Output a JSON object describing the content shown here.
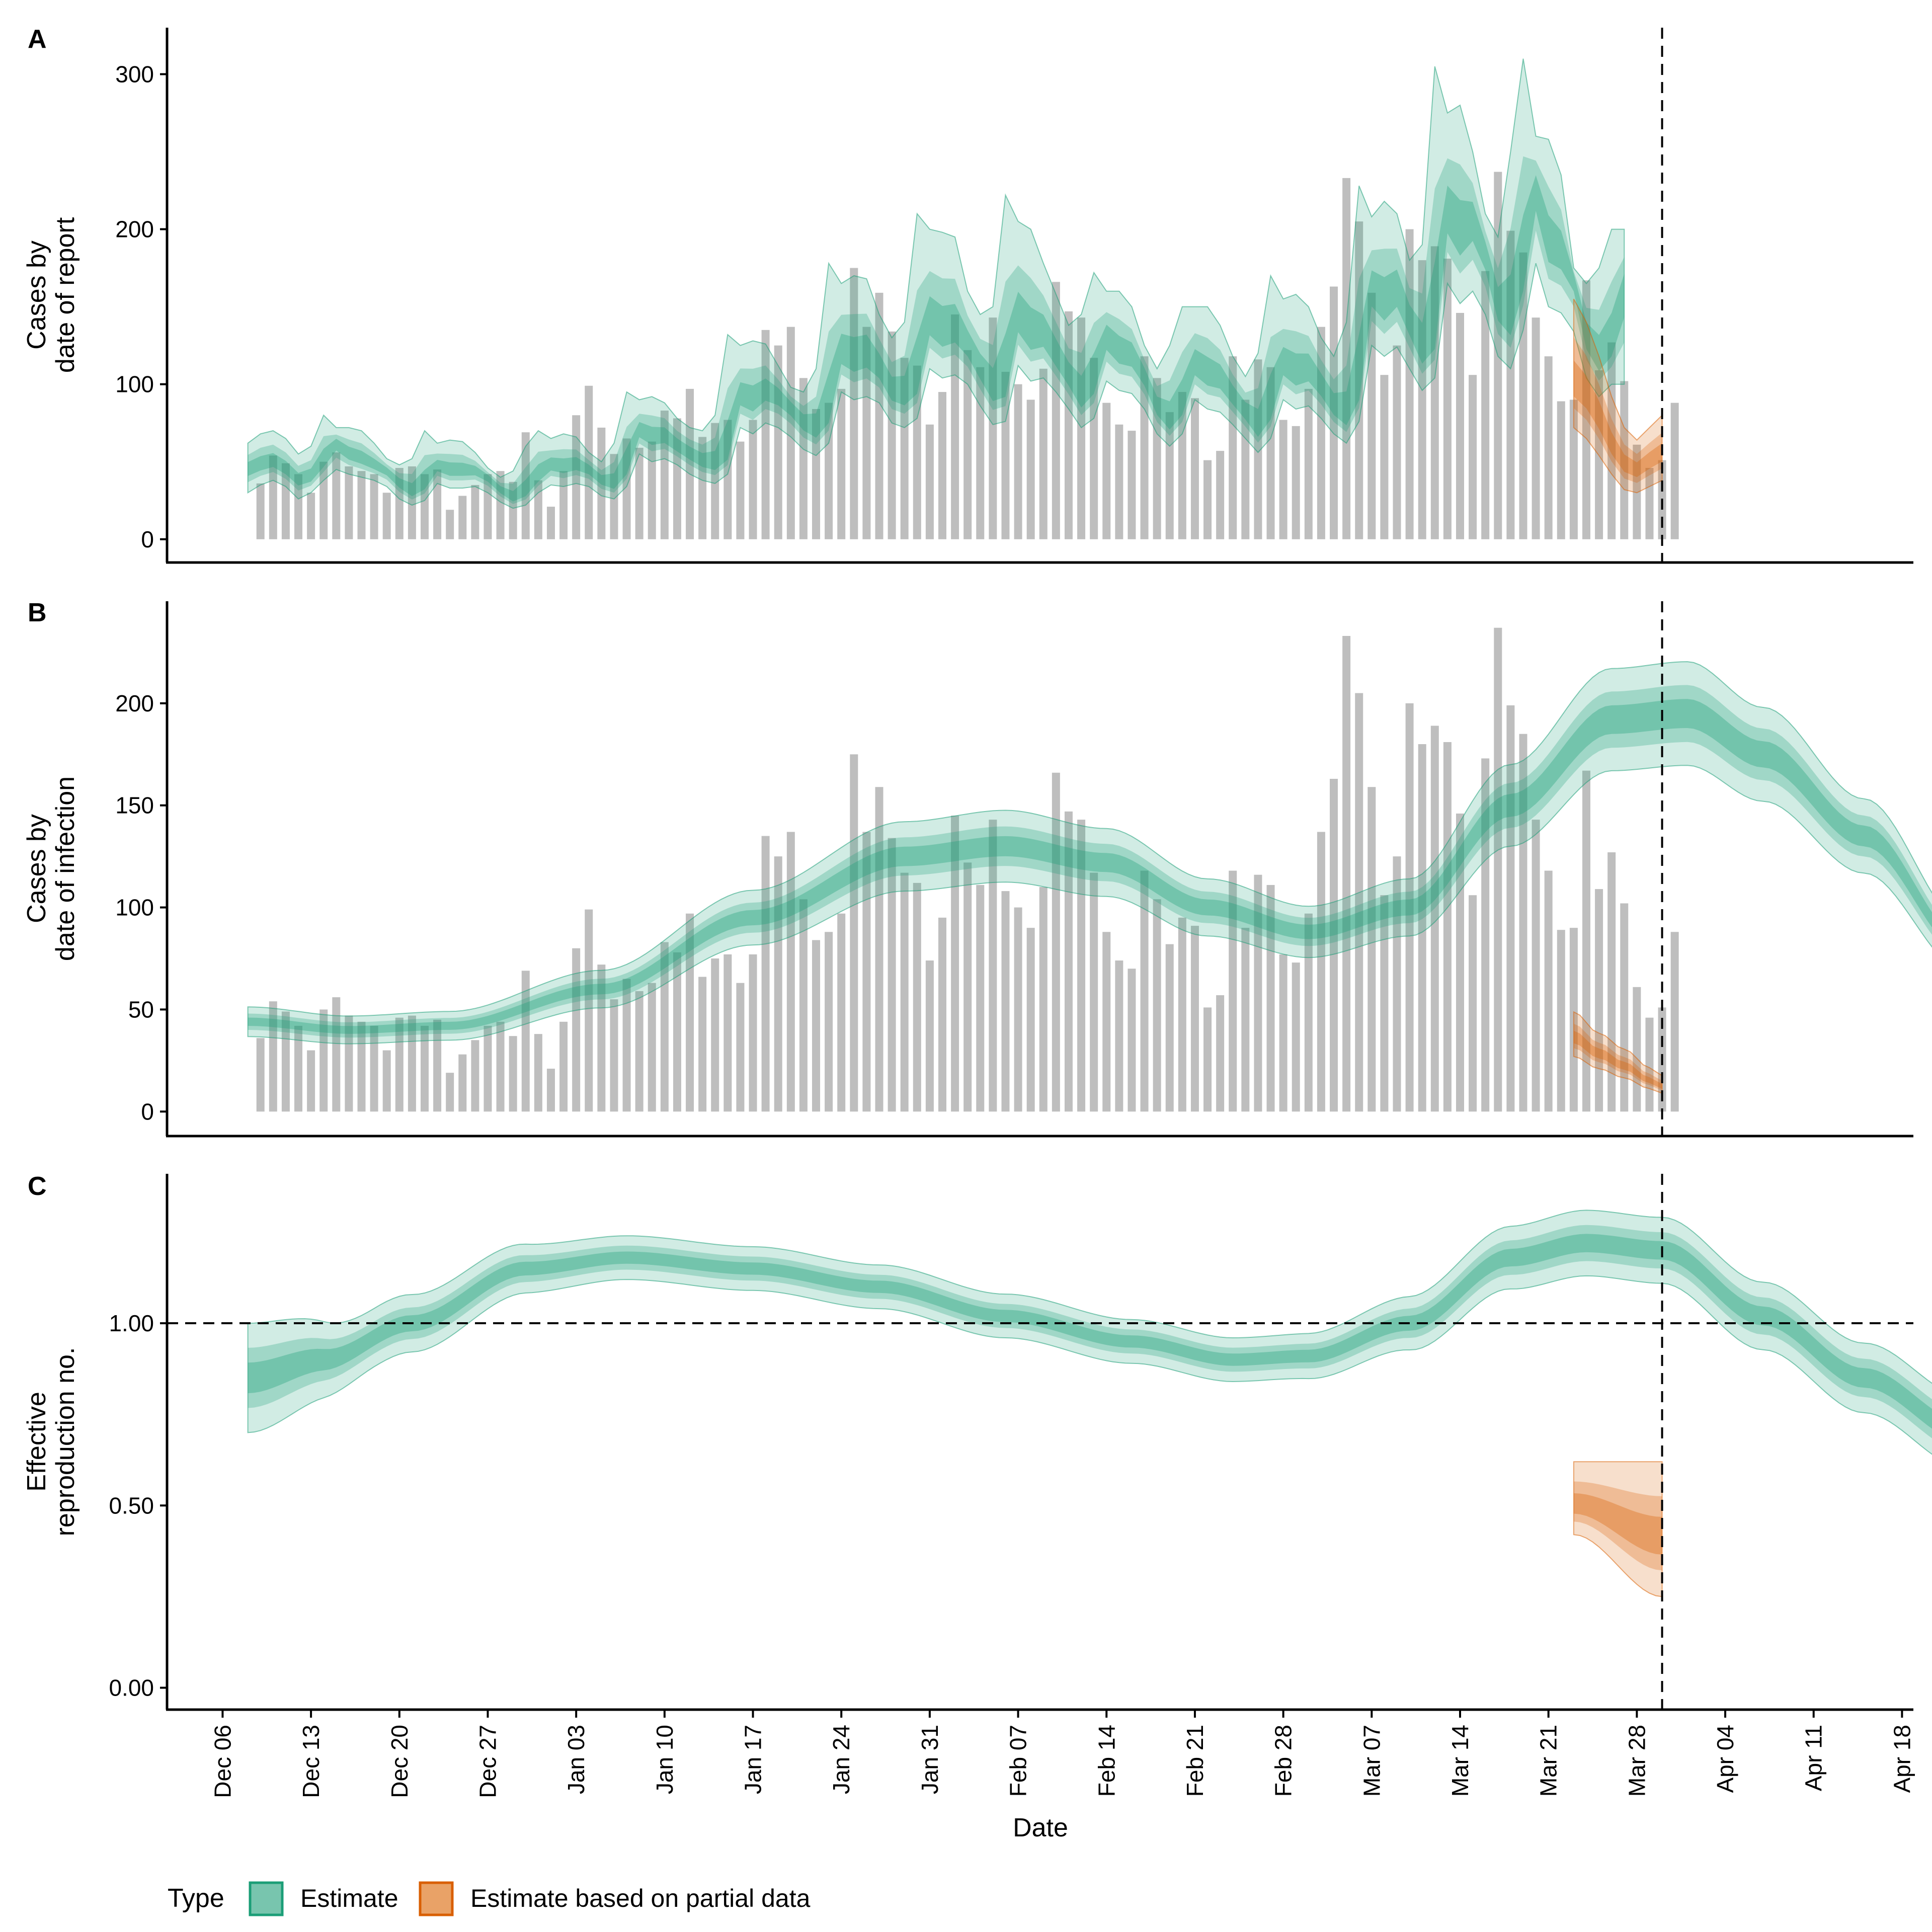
{
  "chart_data": [
    {
      "panel": "A",
      "type": "bar",
      "ylabel": [
        "Cases by",
        "date of report"
      ],
      "ylim": [
        -15,
        330
      ],
      "yticks": [
        0,
        100,
        200,
        300
      ],
      "ytick_labels": [
        "0",
        "100",
        "200",
        "300"
      ],
      "series_bars": "reported_cases",
      "estimate_bands": {
        "start": "2020-12-08",
        "median": [
          45,
          48,
          50,
          45,
          38,
          40,
          50,
          62,
          55,
          52,
          48,
          44,
          36,
          30,
          35,
          47,
          44,
          44,
          44,
          40,
          32,
          26,
          30,
          40,
          48,
          46,
          48,
          45,
          38,
          35,
          45,
          70,
          65,
          66,
          60,
          55,
          50,
          48,
          55,
          92,
          88,
          95,
          92,
          85,
          75,
          70,
          80,
          120,
          115,
          118,
          110,
          95,
          92,
          100,
          140,
          132,
          135,
          125,
          110,
          95,
          98,
          142,
          130,
          132,
          118,
          105,
          90,
          100,
          130,
          120,
          118,
          105,
          85,
          75,
          85,
          112,
          105,
          103,
          92,
          82,
          70,
          82,
          112,
          105,
          108,
          98,
          85,
          78,
          95,
          160,
          150,
          160,
          140,
          120,
          130,
          210,
          195,
          205,
          185,
          150,
          140,
          170,
          225,
          190,
          185,
          170,
          130,
          115,
          125,
          160
        ],
        "upper90": [
          62,
          68,
          70,
          65,
          55,
          60,
          80,
          72,
          72,
          70,
          62,
          52,
          48,
          52,
          70,
          62,
          64,
          63,
          56,
          46,
          40,
          44,
          60,
          70,
          65,
          68,
          66,
          56,
          50,
          62,
          95,
          90,
          92,
          88,
          78,
          72,
          70,
          80,
          132,
          125,
          128,
          126,
          112,
          98,
          95,
          110,
          178,
          165,
          170,
          168,
          145,
          130,
          140,
          210,
          200,
          198,
          195,
          160,
          145,
          150,
          222,
          205,
          200,
          178,
          158,
          138,
          145,
          172,
          160,
          160,
          150,
          125,
          110,
          125,
          150,
          150,
          150,
          138,
          118,
          105,
          120,
          170,
          155,
          158,
          150,
          130,
          118,
          140,
          228,
          208,
          218,
          210,
          180,
          190,
          305,
          275,
          280,
          250,
          210,
          195,
          250,
          310,
          260,
          258,
          235,
          175,
          165,
          175,
          200
        ],
        "lower90": [
          30,
          35,
          38,
          34,
          26,
          30,
          38,
          45,
          42,
          40,
          38,
          34,
          26,
          22,
          25,
          36,
          33,
          33,
          34,
          30,
          24,
          20,
          22,
          30,
          35,
          34,
          36,
          34,
          28,
          26,
          34,
          55,
          50,
          52,
          48,
          42,
          38,
          36,
          42,
          72,
          68,
          75,
          72,
          66,
          58,
          54,
          62,
          95,
          90,
          92,
          88,
          75,
          72,
          78,
          110,
          104,
          106,
          100,
          86,
          74,
          76,
          112,
          102,
          104,
          95,
          84,
          72,
          78,
          102,
          96,
          94,
          84,
          68,
          60,
          68,
          90,
          84,
          82,
          74,
          65,
          56,
          65,
          90,
          84,
          86,
          78,
          68,
          62,
          76,
          125,
          118,
          124,
          110,
          96,
          104,
          165,
          152,
          160,
          145,
          118,
          110,
          135,
          178,
          150,
          146,
          134,
          104,
          92,
          100
        ],
        "partial_start": "2021-03-23",
        "partial_median": [
          100,
          92,
          78,
          60,
          48,
          44,
          50,
          55
        ],
        "partial_upper90": [
          155,
          140,
          118,
          92,
          72,
          64,
          72,
          80
        ],
        "partial_lower90": [
          72,
          65,
          54,
          42,
          32,
          30,
          34,
          38
        ]
      }
    },
    {
      "panel": "B",
      "type": "bar",
      "ylabel": [
        "Cases by",
        "date of infection"
      ],
      "ylim": [
        -12,
        250
      ],
      "yticks": [
        0,
        50,
        100,
        150,
        200
      ],
      "ytick_labels": [
        "0",
        "50",
        "100",
        "150",
        "200"
      ],
      "series_bars": "reported_cases",
      "estimate_curve": {
        "start": "2020-12-08",
        "knots": [
          [
            0,
            44
          ],
          [
            8,
            40
          ],
          [
            16,
            42
          ],
          [
            28,
            60
          ],
          [
            40,
            95
          ],
          [
            52,
            125
          ],
          [
            60,
            130
          ],
          [
            68,
            122
          ],
          [
            76,
            100
          ],
          [
            84,
            88
          ],
          [
            92,
            100
          ],
          [
            100,
            150
          ],
          [
            108,
            192
          ],
          [
            114,
            195
          ],
          [
            120,
            175
          ],
          [
            128,
            135
          ],
          [
            136,
            80
          ],
          [
            143,
            52
          ],
          [
            147,
            42
          ]
        ],
        "partial_knots": [
          [
            0,
            36
          ],
          [
            2,
            28
          ],
          [
            4,
            22
          ],
          [
            6,
            15
          ],
          [
            7,
            12
          ]
        ],
        "partial_start": "2021-03-23"
      }
    },
    {
      "panel": "C",
      "type": "line",
      "ylabel": [
        "Effective",
        "reproduction no."
      ],
      "ylim": [
        -0.06,
        1.41
      ],
      "yticks": [
        0,
        0.5,
        1.0
      ],
      "ytick_labels": [
        "0.00",
        "0.50",
        "1.00"
      ],
      "reference_line": 1.0,
      "estimate_curve": {
        "start": "2020-12-08",
        "median": [
          [
            0,
            0.85
          ],
          [
            6,
            0.9
          ],
          [
            13,
            1.0
          ],
          [
            22,
            1.15
          ],
          [
            30,
            1.18
          ],
          [
            40,
            1.15
          ],
          [
            50,
            1.1
          ],
          [
            60,
            1.02
          ],
          [
            70,
            0.95
          ],
          [
            78,
            0.9
          ],
          [
            84,
            0.91
          ],
          [
            92,
            1.0
          ],
          [
            100,
            1.18
          ],
          [
            106,
            1.22
          ],
          [
            112,
            1.2
          ],
          [
            120,
            1.02
          ],
          [
            128,
            0.85
          ],
          [
            136,
            0.7
          ],
          [
            143,
            0.58
          ],
          [
            147,
            0.54
          ]
        ],
        "upper90_offset": [
          [
            0,
            0.15
          ],
          [
            10,
            0.08
          ],
          [
            30,
            0.06
          ],
          [
            80,
            0.06
          ],
          [
            106,
            0.09
          ],
          [
            147,
            0.1
          ]
        ],
        "lower90_offset": [
          [
            0,
            0.15
          ],
          [
            10,
            0.08
          ],
          [
            30,
            0.06
          ],
          [
            80,
            0.06
          ],
          [
            106,
            0.09
          ],
          [
            147,
            0.1
          ]
        ],
        "partial_start": "2021-03-23",
        "partial_median": [
          [
            0,
            0.5
          ],
          [
            7,
            0.41
          ]
        ],
        "partial_upper90": [
          [
            0,
            0.62
          ],
          [
            7,
            0.62
          ]
        ],
        "partial_lower90": [
          [
            0,
            0.42
          ],
          [
            7,
            0.25
          ]
        ]
      }
    }
  ],
  "bars": {
    "start": "2020-12-09",
    "values": [
      36,
      54,
      49,
      42,
      30,
      50,
      56,
      47,
      44,
      42,
      30,
      46,
      47,
      42,
      45,
      19,
      28,
      35,
      42,
      44,
      37,
      69,
      38,
      21,
      44,
      80,
      99,
      72,
      55,
      65,
      59,
      63,
      83,
      78,
      97,
      66,
      75,
      77,
      63,
      77,
      135,
      125,
      137,
      104,
      84,
      88,
      97,
      175,
      137,
      159,
      134,
      117,
      112,
      74,
      95,
      145,
      122,
      111,
      143,
      108,
      100,
      90,
      110,
      166,
      147,
      143,
      117,
      88,
      74,
      70,
      118,
      104,
      82,
      95,
      91,
      51,
      57,
      118,
      90,
      116,
      111,
      77,
      73,
      97,
      137,
      163,
      233,
      205,
      159,
      106,
      125,
      200,
      180,
      189,
      181,
      146,
      106,
      173,
      237,
      199,
      185,
      143,
      118,
      89,
      90,
      167,
      109,
      127,
      102,
      61,
      46,
      51,
      88
    ]
  },
  "x_axis": {
    "label": "Date",
    "ticks": [
      "Dec 06",
      "Dec 13",
      "Dec 20",
      "Dec 27",
      "Jan 03",
      "Jan 10",
      "Jan 17",
      "Jan 24",
      "Jan 31",
      "Feb 07",
      "Feb 14",
      "Feb 21",
      "Feb 28",
      "Mar 07",
      "Mar 14",
      "Mar 21",
      "Mar 28",
      "Apr 04",
      "Apr 11",
      "Apr 18"
    ],
    "range_days_from_dec06": [
      -4.4,
      133.9
    ],
    "vertical_line_day": 114
  },
  "panel_labels": [
    "A",
    "B",
    "C"
  ],
  "legend": {
    "title": "Type",
    "items": [
      {
        "label": "Estimate",
        "fill": "#78C5AE",
        "stroke": "#1B9E77"
      },
      {
        "label": "Estimate based on partial data",
        "fill": "#E9A267",
        "stroke": "#D95F02"
      }
    ]
  },
  "colors": {
    "bar": "#BEBEBE",
    "estimate": "#1B9E77",
    "partial": "#D95F02",
    "axis": "#000000"
  }
}
